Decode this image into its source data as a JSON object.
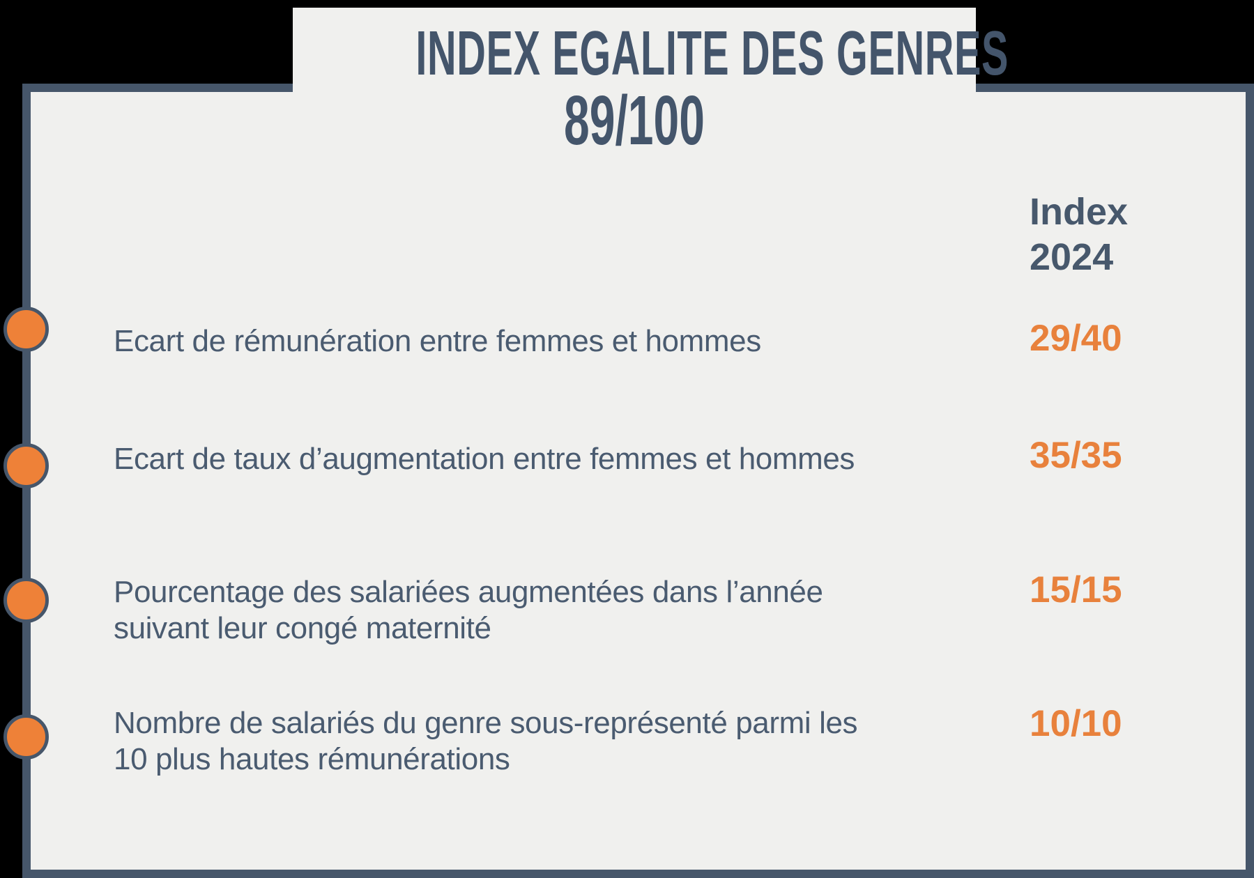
{
  "title": {
    "heading": "INDEX EGALITE DES GENRES",
    "total_score": "89/100"
  },
  "column_header": {
    "line1": "Index",
    "line2": "2024"
  },
  "rows": [
    {
      "label": "Ecart de rémunération entre femmes et hommes",
      "score": "29/40"
    },
    {
      "label": "Ecart de taux d’augmentation entre femmes et hommes",
      "score": "35/35"
    },
    {
      "label": "Pourcentage des salariées augmentées dans l’année suivant leur congé maternité",
      "score": "15/15"
    },
    {
      "label": "Nombre de salariés du genre sous-représenté parmi les 10 plus hautes rémunérations",
      "score": "10/10"
    }
  ],
  "colors": {
    "slate_text": "#47586c",
    "slate_border": "#46566a",
    "orange_accent": "#e8813c",
    "card_background": "#f0f0ee",
    "page_background": "#000000"
  }
}
